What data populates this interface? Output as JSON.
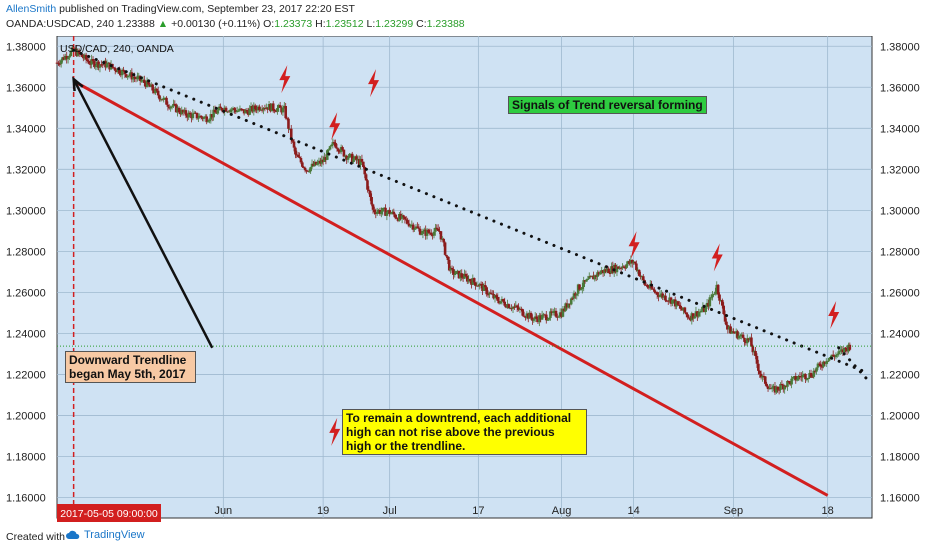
{
  "header": {
    "author": "AllenSmith",
    "published_text": "published on TradingView.com, September 23, 2017 22:20 EST",
    "symbol_label": "OANDA:USDCAD, 240",
    "last": "1.23388",
    "change_arrow": "▲",
    "change": "+0.00130 (+0.11%)",
    "o_label": "O:",
    "o_value": "1.23373",
    "h_label": "H:",
    "h_value": "1.23512",
    "l_label": "L:",
    "l_value": "1.23299",
    "c_label": "C:",
    "c_value": "1.23388"
  },
  "footer": {
    "created_with": "Created with",
    "brand": "TradingView"
  },
  "colors": {
    "plot_bg": "#cfe2f3",
    "grid": "#9fb9cf",
    "trend_red": "#d21f1f",
    "candle_up": "#4a7a3a",
    "candle_down": "#8b1c1c",
    "label_green": "#2ecc40",
    "label_yellow": "#ffff00",
    "label_tan": "#f7c9a4"
  },
  "chart_data": {
    "type": "candlestick",
    "title": "USD/CAD, 240, OANDA",
    "ylim": [
      1.15,
      1.385
    ],
    "y_ticks": [
      1.16,
      1.18,
      1.2,
      1.22,
      1.24,
      1.26,
      1.28,
      1.3,
      1.32,
      1.34,
      1.36,
      1.38
    ],
    "y_tick_labels": [
      "1.16000",
      "1.18000",
      "1.20000",
      "1.22000",
      "1.24000",
      "1.26000",
      "1.28000",
      "1.30000",
      "1.32000",
      "1.34000",
      "1.36000",
      "1.38000"
    ],
    "x_range": [
      "2017-05-02",
      "2017-09-26"
    ],
    "x_ticks": [
      {
        "date": "2017-06-01",
        "label": "Jun"
      },
      {
        "date": "2017-06-19",
        "label": "19"
      },
      {
        "date": "2017-07-01",
        "label": "Jul"
      },
      {
        "date": "2017-07-17",
        "label": "17"
      },
      {
        "date": "2017-08-01",
        "label": "Aug"
      },
      {
        "date": "2017-08-14",
        "label": "14"
      },
      {
        "date": "2017-09-01",
        "label": "Sep"
      },
      {
        "date": "2017-09-18",
        "label": "18"
      }
    ],
    "current_date_label": "2017-05-05 09:00:00",
    "last_price": 1.23388,
    "price_path": [
      [
        "2017-05-02",
        1.372
      ],
      [
        "2017-05-05",
        1.378
      ],
      [
        "2017-05-08",
        1.372
      ],
      [
        "2017-05-11",
        1.371
      ],
      [
        "2017-05-15",
        1.366
      ],
      [
        "2017-05-18",
        1.362
      ],
      [
        "2017-05-22",
        1.352
      ],
      [
        "2017-05-25",
        1.347
      ],
      [
        "2017-05-29",
        1.345
      ],
      [
        "2017-06-01",
        1.35
      ],
      [
        "2017-06-05",
        1.348
      ],
      [
        "2017-06-08",
        1.351
      ],
      [
        "2017-06-12",
        1.349
      ],
      [
        "2017-06-14",
        1.327
      ],
      [
        "2017-06-16",
        1.32
      ],
      [
        "2017-06-19",
        1.324
      ],
      [
        "2017-06-21",
        1.333
      ],
      [
        "2017-06-23",
        1.327
      ],
      [
        "2017-06-26",
        1.323
      ],
      [
        "2017-06-28",
        1.3
      ],
      [
        "2017-07-01",
        1.299
      ],
      [
        "2017-07-05",
        1.293
      ],
      [
        "2017-07-07",
        1.289
      ],
      [
        "2017-07-10",
        1.29
      ],
      [
        "2017-07-12",
        1.27
      ],
      [
        "2017-07-14",
        1.268
      ],
      [
        "2017-07-17",
        1.264
      ],
      [
        "2017-07-20",
        1.257
      ],
      [
        "2017-07-24",
        1.252
      ],
      [
        "2017-07-27",
        1.247
      ],
      [
        "2017-08-01",
        1.25
      ],
      [
        "2017-08-04",
        1.262
      ],
      [
        "2017-08-08",
        1.27
      ],
      [
        "2017-08-11",
        1.272
      ],
      [
        "2017-08-14",
        1.275
      ],
      [
        "2017-08-16",
        1.264
      ],
      [
        "2017-08-18",
        1.26
      ],
      [
        "2017-08-21",
        1.256
      ],
      [
        "2017-08-24",
        1.248
      ],
      [
        "2017-08-27",
        1.252
      ],
      [
        "2017-08-29",
        1.263
      ],
      [
        "2017-08-31",
        1.242
      ],
      [
        "2017-09-04",
        1.236
      ],
      [
        "2017-09-06",
        1.219
      ],
      [
        "2017-09-08",
        1.212
      ],
      [
        "2017-09-11",
        1.216
      ],
      [
        "2017-09-13",
        1.219
      ],
      [
        "2017-09-15",
        1.22
      ],
      [
        "2017-09-18",
        1.228
      ],
      [
        "2017-09-20",
        1.23
      ],
      [
        "2017-09-22",
        1.234
      ]
    ],
    "trendlines": [
      {
        "kind": "solid",
        "color": "#d21f1f",
        "from": [
          "2017-05-05",
          1.363
        ],
        "to": [
          "2017-09-18",
          1.161
        ]
      },
      {
        "kind": "dotted",
        "color": "#111111",
        "from": [
          "2017-05-05",
          1.378
        ],
        "to": [
          "2017-09-25",
          1.221
        ]
      },
      {
        "kind": "dotted",
        "color": "#111111",
        "from": [
          "2017-09-20",
          1.233
        ],
        "to": [
          "2017-09-25",
          1.218
        ]
      },
      {
        "kind": "horizontal-dotted",
        "color": "#2a9d2a",
        "price": 1.2338
      }
    ],
    "arrow": {
      "from": [
        "2017-05-30",
        1.233
      ],
      "to": [
        "2017-05-05",
        1.364
      ]
    },
    "signal_marks": [
      [
        "2017-06-12",
        1.364
      ],
      [
        "2017-06-21",
        1.341
      ],
      [
        "2017-06-28",
        1.362
      ],
      [
        "2017-08-14",
        1.283
      ],
      [
        "2017-08-29",
        1.277
      ],
      [
        "2017-09-19",
        1.249
      ],
      [
        "2017-06-21",
        1.192
      ]
    ],
    "annotations": [
      {
        "id": "signals",
        "text": "Signals of Trend reversal forming"
      },
      {
        "id": "downtrend",
        "text": "To remain a downtrend, each additional high can not rise above the previous high or the trendline."
      },
      {
        "id": "trendline-began",
        "text": "Downward Trendline began May 5th, 2017"
      }
    ]
  }
}
